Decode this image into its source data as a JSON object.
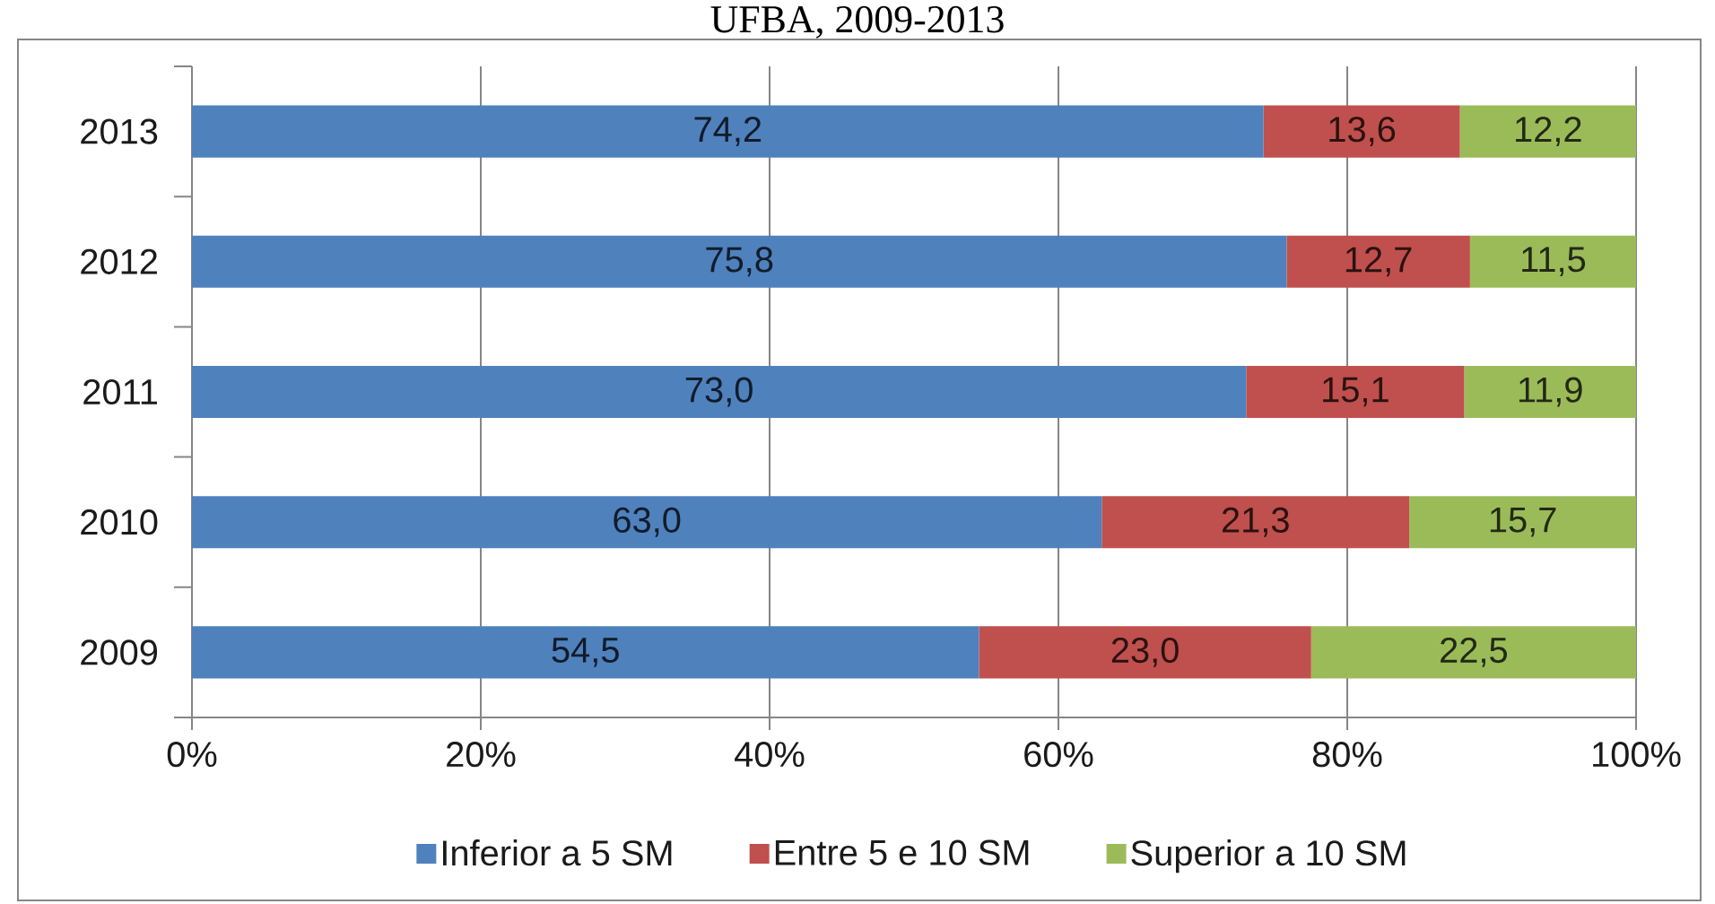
{
  "chart_data": {
    "type": "bar",
    "title": "UFBA, 2009-2013",
    "orientation": "horizontal",
    "stacked": true,
    "categories": [
      "2013",
      "2012",
      "2011",
      "2010",
      "2009"
    ],
    "series": [
      {
        "name": "Inferior a 5 SM",
        "color": "#4f81bd",
        "values": [
          74.2,
          75.8,
          73.0,
          63.0,
          54.5
        ],
        "value_labels": [
          "74,2",
          "75,8",
          "73,0",
          "63,0",
          "54,5"
        ]
      },
      {
        "name": "Entre 5 e 10 SM",
        "color": "#c0504d",
        "values": [
          13.6,
          12.7,
          15.1,
          21.3,
          23.0
        ],
        "value_labels": [
          "13,6",
          "12,7",
          "15,1",
          "21,3",
          "23,0"
        ]
      },
      {
        "name": "Superior a 10 SM",
        "color": "#9bbb59",
        "values": [
          12.2,
          11.5,
          11.9,
          15.7,
          22.5
        ],
        "value_labels": [
          "12,2",
          "11,5",
          "11,9",
          "15,7",
          "22,5"
        ]
      }
    ],
    "xlim": [
      0,
      100
    ],
    "xticks": [
      {
        "value": 0,
        "label": "0%"
      },
      {
        "value": 20,
        "label": "20%"
      },
      {
        "value": 40,
        "label": "40%"
      },
      {
        "value": 60,
        "label": "60%"
      },
      {
        "value": 80,
        "label": "80%"
      },
      {
        "value": 100,
        "label": "100%"
      }
    ],
    "grid": "x",
    "legend": "bottom"
  }
}
